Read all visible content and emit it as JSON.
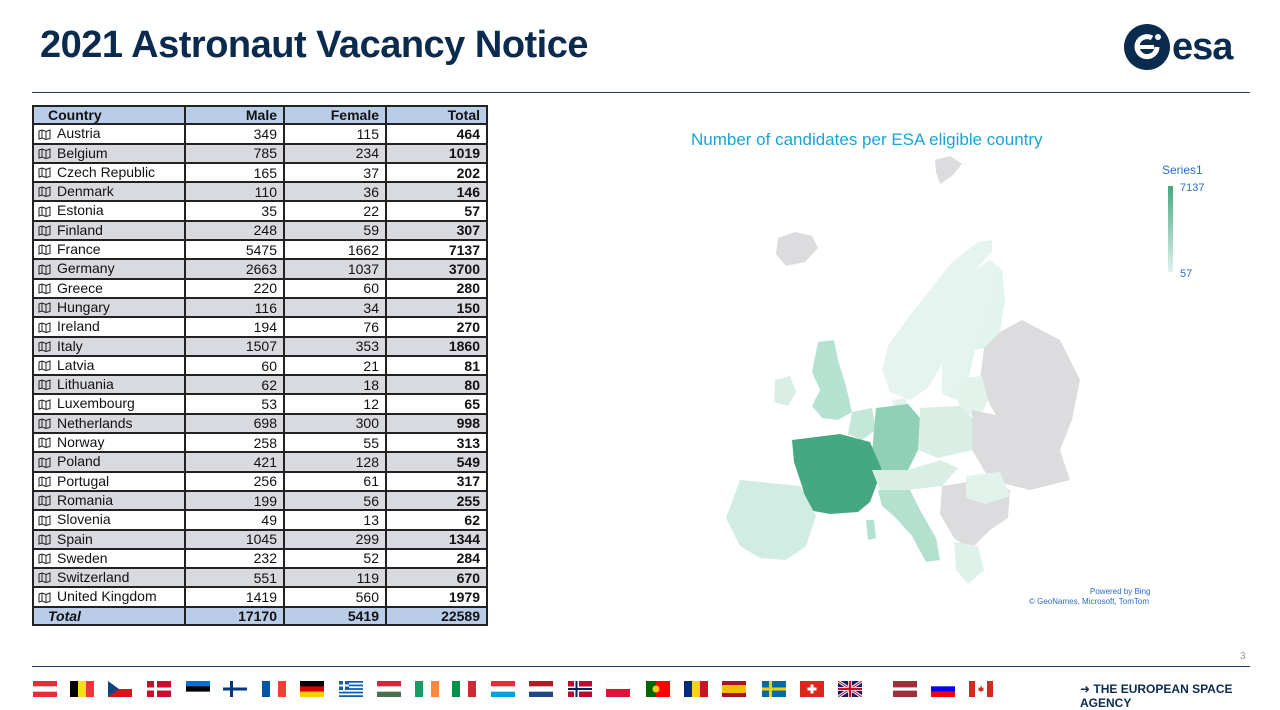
{
  "title": "2021 Astronaut Vacancy Notice",
  "logo_text": "esa",
  "table": {
    "headers": [
      "Country",
      "Male",
      "Female",
      "Total"
    ],
    "rows": [
      {
        "country": "Austria",
        "male": "349",
        "female": "115",
        "total": "464"
      },
      {
        "country": "Belgium",
        "male": "785",
        "female": "234",
        "total": "1019"
      },
      {
        "country": "Czech Republic",
        "male": "165",
        "female": "37",
        "total": "202"
      },
      {
        "country": "Denmark",
        "male": "110",
        "female": "36",
        "total": "146"
      },
      {
        "country": "Estonia",
        "male": "35",
        "female": "22",
        "total": "57"
      },
      {
        "country": "Finland",
        "male": "248",
        "female": "59",
        "total": "307"
      },
      {
        "country": "France",
        "male": "5475",
        "female": "1662",
        "total": "7137"
      },
      {
        "country": "Germany",
        "male": "2663",
        "female": "1037",
        "total": "3700"
      },
      {
        "country": "Greece",
        "male": "220",
        "female": "60",
        "total": "280"
      },
      {
        "country": "Hungary",
        "male": "116",
        "female": "34",
        "total": "150"
      },
      {
        "country": "Ireland",
        "male": "194",
        "female": "76",
        "total": "270"
      },
      {
        "country": "Italy",
        "male": "1507",
        "female": "353",
        "total": "1860"
      },
      {
        "country": "Latvia",
        "male": "60",
        "female": "21",
        "total": "81"
      },
      {
        "country": "Lithuania",
        "male": "62",
        "female": "18",
        "total": "80"
      },
      {
        "country": "Luxembourg",
        "male": "53",
        "female": "12",
        "total": "65"
      },
      {
        "country": "Netherlands",
        "male": "698",
        "female": "300",
        "total": "998"
      },
      {
        "country": "Norway",
        "male": "258",
        "female": "55",
        "total": "313"
      },
      {
        "country": "Poland",
        "male": "421",
        "female": "128",
        "total": "549"
      },
      {
        "country": "Portugal",
        "male": "256",
        "female": "61",
        "total": "317"
      },
      {
        "country": "Romania",
        "male": "199",
        "female": "56",
        "total": "255"
      },
      {
        "country": "Slovenia",
        "male": "49",
        "female": "13",
        "total": "62"
      },
      {
        "country": "Spain",
        "male": "1045",
        "female": "299",
        "total": "1344"
      },
      {
        "country": "Sweden",
        "male": "232",
        "female": "52",
        "total": "284"
      },
      {
        "country": "Switzerland",
        "male": "551",
        "female": "119",
        "total": "670"
      },
      {
        "country": "United Kingdom",
        "male": "1419",
        "female": "560",
        "total": "1979"
      }
    ],
    "total_row": {
      "country": "Total",
      "male": "17170",
      "female": "5419",
      "total": "22589"
    }
  },
  "map": {
    "title": "Number of candidates per ESA eligible country",
    "legend_title": "Series1",
    "legend_max": "7137",
    "legend_min": "57",
    "attribution_line1": "Powered by Bing",
    "attribution_line2": "© GeoNames, Microsoft, TomTom",
    "colors": {
      "max": "#46a883",
      "min": "#dff2ea",
      "non_member": "#dcdcde"
    }
  },
  "page_number": "3",
  "agency": "➜ THE EUROPEAN SPACE AGENCY",
  "flags": [
    "austria",
    "belgium",
    "czech-republic",
    "denmark",
    "estonia",
    "finland",
    "france",
    "germany",
    "greece",
    "hungary",
    "ireland",
    "italy",
    "luxembourg",
    "netherlands",
    "norway",
    "poland",
    "portugal",
    "romania",
    "spain",
    "sweden",
    "switzerland",
    "united-kingdom",
    "latvia",
    "slovenia",
    "canada"
  ]
}
